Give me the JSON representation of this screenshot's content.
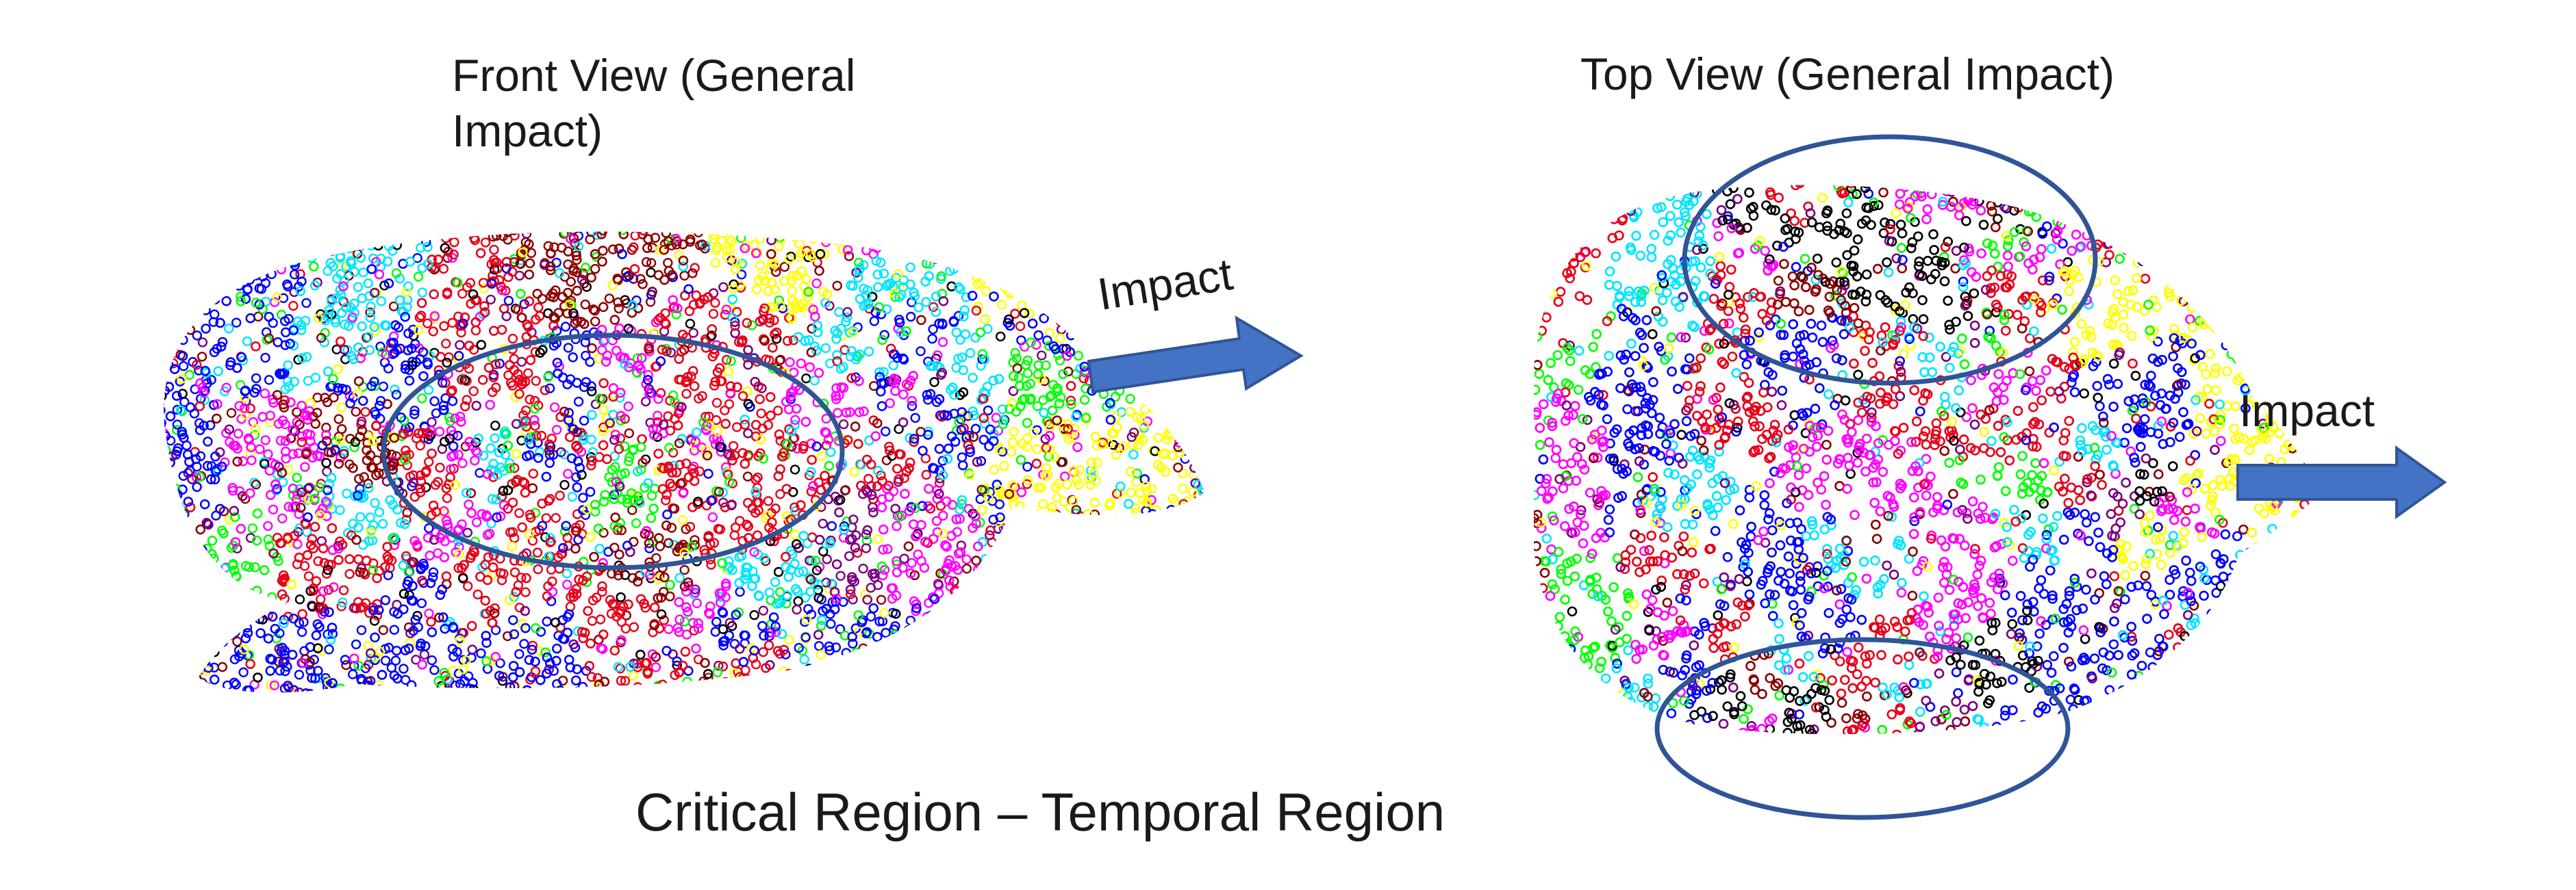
{
  "figure": {
    "front_view_title": "Front View (General\nImpact)",
    "top_view_title": "Top View (General Impact)",
    "front_impact_label": "Impact",
    "top_impact_label": "Impact",
    "caption": "Critical Region – Temporal Region"
  },
  "colors": {
    "point_palette": [
      "#e6001a",
      "#0000ff",
      "#00ff00",
      "#ff00ff",
      "#00e5ff",
      "#ffff00",
      "#000000",
      "#8b0000",
      "#7a0080"
    ],
    "arrow_fill": "#4472c4",
    "ellipse_stroke": "#2f5597"
  },
  "icons": {
    "front_arrow": "right-arrow-icon",
    "top_arrow": "right-arrow-icon"
  }
}
